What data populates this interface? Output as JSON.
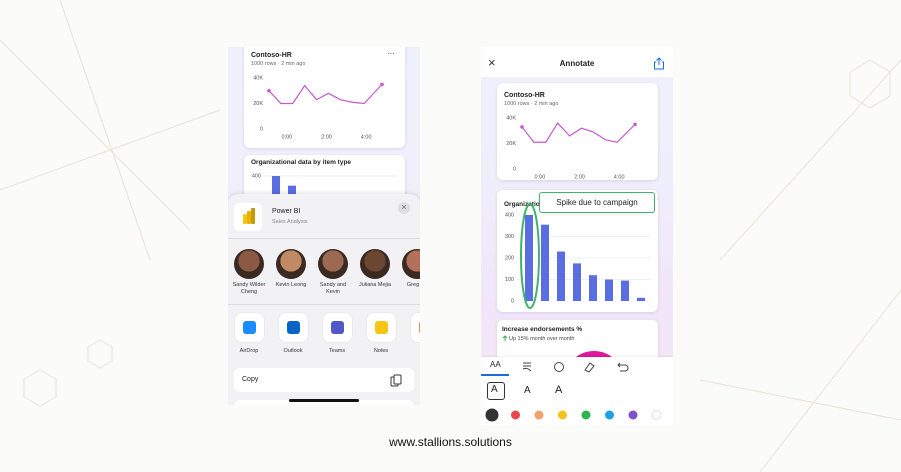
{
  "chart_data": [
    {
      "type": "line",
      "title": "Contoso-HR",
      "subtitle": "1000 rows · 2 min ago",
      "menu": "···",
      "x": [
        -0.9,
        -0.3,
        0.3,
        0.9,
        1.5,
        2.1,
        2.7,
        3.3,
        3.9,
        4.8
      ],
      "values": [
        30000,
        20000,
        20000,
        34000,
        23000,
        28000,
        23000,
        21000,
        20000,
        35000
      ],
      "color": "#c45bc9",
      "xlim": [
        -1.1,
        5.0
      ],
      "ylim": [
        0,
        40000
      ],
      "xticks": [
        {
          "value": 0,
          "label": "0:00"
        },
        {
          "value": 2,
          "label": "2:00"
        },
        {
          "value": 4,
          "label": "4:00"
        }
      ],
      "yticks": [
        0,
        {
          "value": 20000,
          "label": "20K"
        },
        {
          "value": 40000,
          "label": "40K"
        }
      ],
      "grid": false
    },
    {
      "type": "bar",
      "title": "Organizational data by item type",
      "categories": [
        null,
        null,
        null,
        null,
        null,
        null,
        null,
        null
      ],
      "values": [
        400,
        355,
        230,
        175,
        120,
        100,
        95,
        15
      ],
      "color": "#5b6ee1",
      "ylim": [
        0,
        400
      ],
      "yticks": [
        400
      ],
      "grid": true
    },
    {
      "type": "line",
      "title": "Contoso-HR",
      "subtitle": "1000 rows · 2 min ago",
      "x": [
        -0.9,
        -0.3,
        0.3,
        0.9,
        1.5,
        2.1,
        2.7,
        3.3,
        3.9,
        4.8
      ],
      "values": [
        33000,
        21000,
        21000,
        36000,
        26000,
        32000,
        29000,
        23000,
        21000,
        35000
      ],
      "color": "#c45bc9",
      "xlim": [
        -1.1,
        5.0
      ],
      "ylim": [
        0,
        40000
      ],
      "xticks": [
        {
          "value": 0,
          "label": "0:00"
        },
        {
          "value": 2,
          "label": "2:00"
        },
        {
          "value": 4,
          "label": "4:00"
        }
      ],
      "yticks": [
        0,
        {
          "value": 20000,
          "label": "20K"
        },
        {
          "value": 40000,
          "label": "40K"
        }
      ],
      "grid": false
    },
    {
      "type": "bar",
      "title": "Organizational data by item type",
      "categories": [
        null,
        null,
        null,
        null,
        null,
        null,
        null,
        null
      ],
      "values": [
        400,
        355,
        230,
        175,
        120,
        100,
        95,
        15
      ],
      "color": "#5b6ee1",
      "ylim": [
        0,
        400
      ],
      "yticks": [
        0,
        100,
        200,
        300,
        400
      ],
      "grid": true
    }
  ],
  "left_phone": {
    "share_sheet": {
      "app_name": "Power BI",
      "app_subtitle": "Sales Analysis",
      "close": "×",
      "people": [
        "Sandy Wilder Cheng",
        "Kevin Leong",
        "Sandy and Kevin",
        "Juliana Mejia",
        "Greg Ap"
      ],
      "apps": [
        "AirDrop",
        "Outlook",
        "Teams",
        "Notes",
        "Re"
      ],
      "action": "Copy"
    }
  },
  "right_phone": {
    "close": "×",
    "header": "Annotate",
    "annotation": "Spike due to campaign",
    "card3": {
      "title": "Increase endorsements %",
      "subtitle": "Up 15% month over month"
    },
    "toolbar": {
      "text_tool": "AA",
      "sizes": [
        "A",
        "A",
        "A"
      ],
      "colors": [
        "#333333",
        "#e8484c",
        "#f2a06e",
        "#f4c21c",
        "#2fb34f",
        "#1fa0e6",
        "#8452c8",
        "#ffffff"
      ]
    }
  },
  "footer": "www.stallions.solutions"
}
